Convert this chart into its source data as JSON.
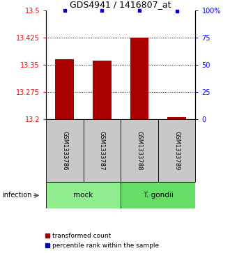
{
  "title": "GDS4941 / 1416807_at",
  "samples": [
    "GSM1333786",
    "GSM1333787",
    "GSM1333788",
    "GSM1333789"
  ],
  "bar_values": [
    13.365,
    13.36,
    13.425,
    13.205
  ],
  "percentile_values": [
    100,
    100,
    100,
    99
  ],
  "ymin": 13.2,
  "ymax": 13.5,
  "yticks_left": [
    13.2,
    13.275,
    13.35,
    13.425,
    13.5
  ],
  "yticks_right": [
    0,
    25,
    50,
    75,
    100
  ],
  "bar_color": "#AA0000",
  "percentile_color": "#0000CC",
  "groups": [
    {
      "label": "mock",
      "samples": [
        0,
        1
      ],
      "color": "#90EE90"
    },
    {
      "label": "T. gondii",
      "samples": [
        2,
        3
      ],
      "color": "#66DD66"
    }
  ],
  "infection_label": "infection",
  "legend_red": "transformed count",
  "legend_blue": "percentile rank within the sample",
  "sample_box_color": "#C8C8C8"
}
